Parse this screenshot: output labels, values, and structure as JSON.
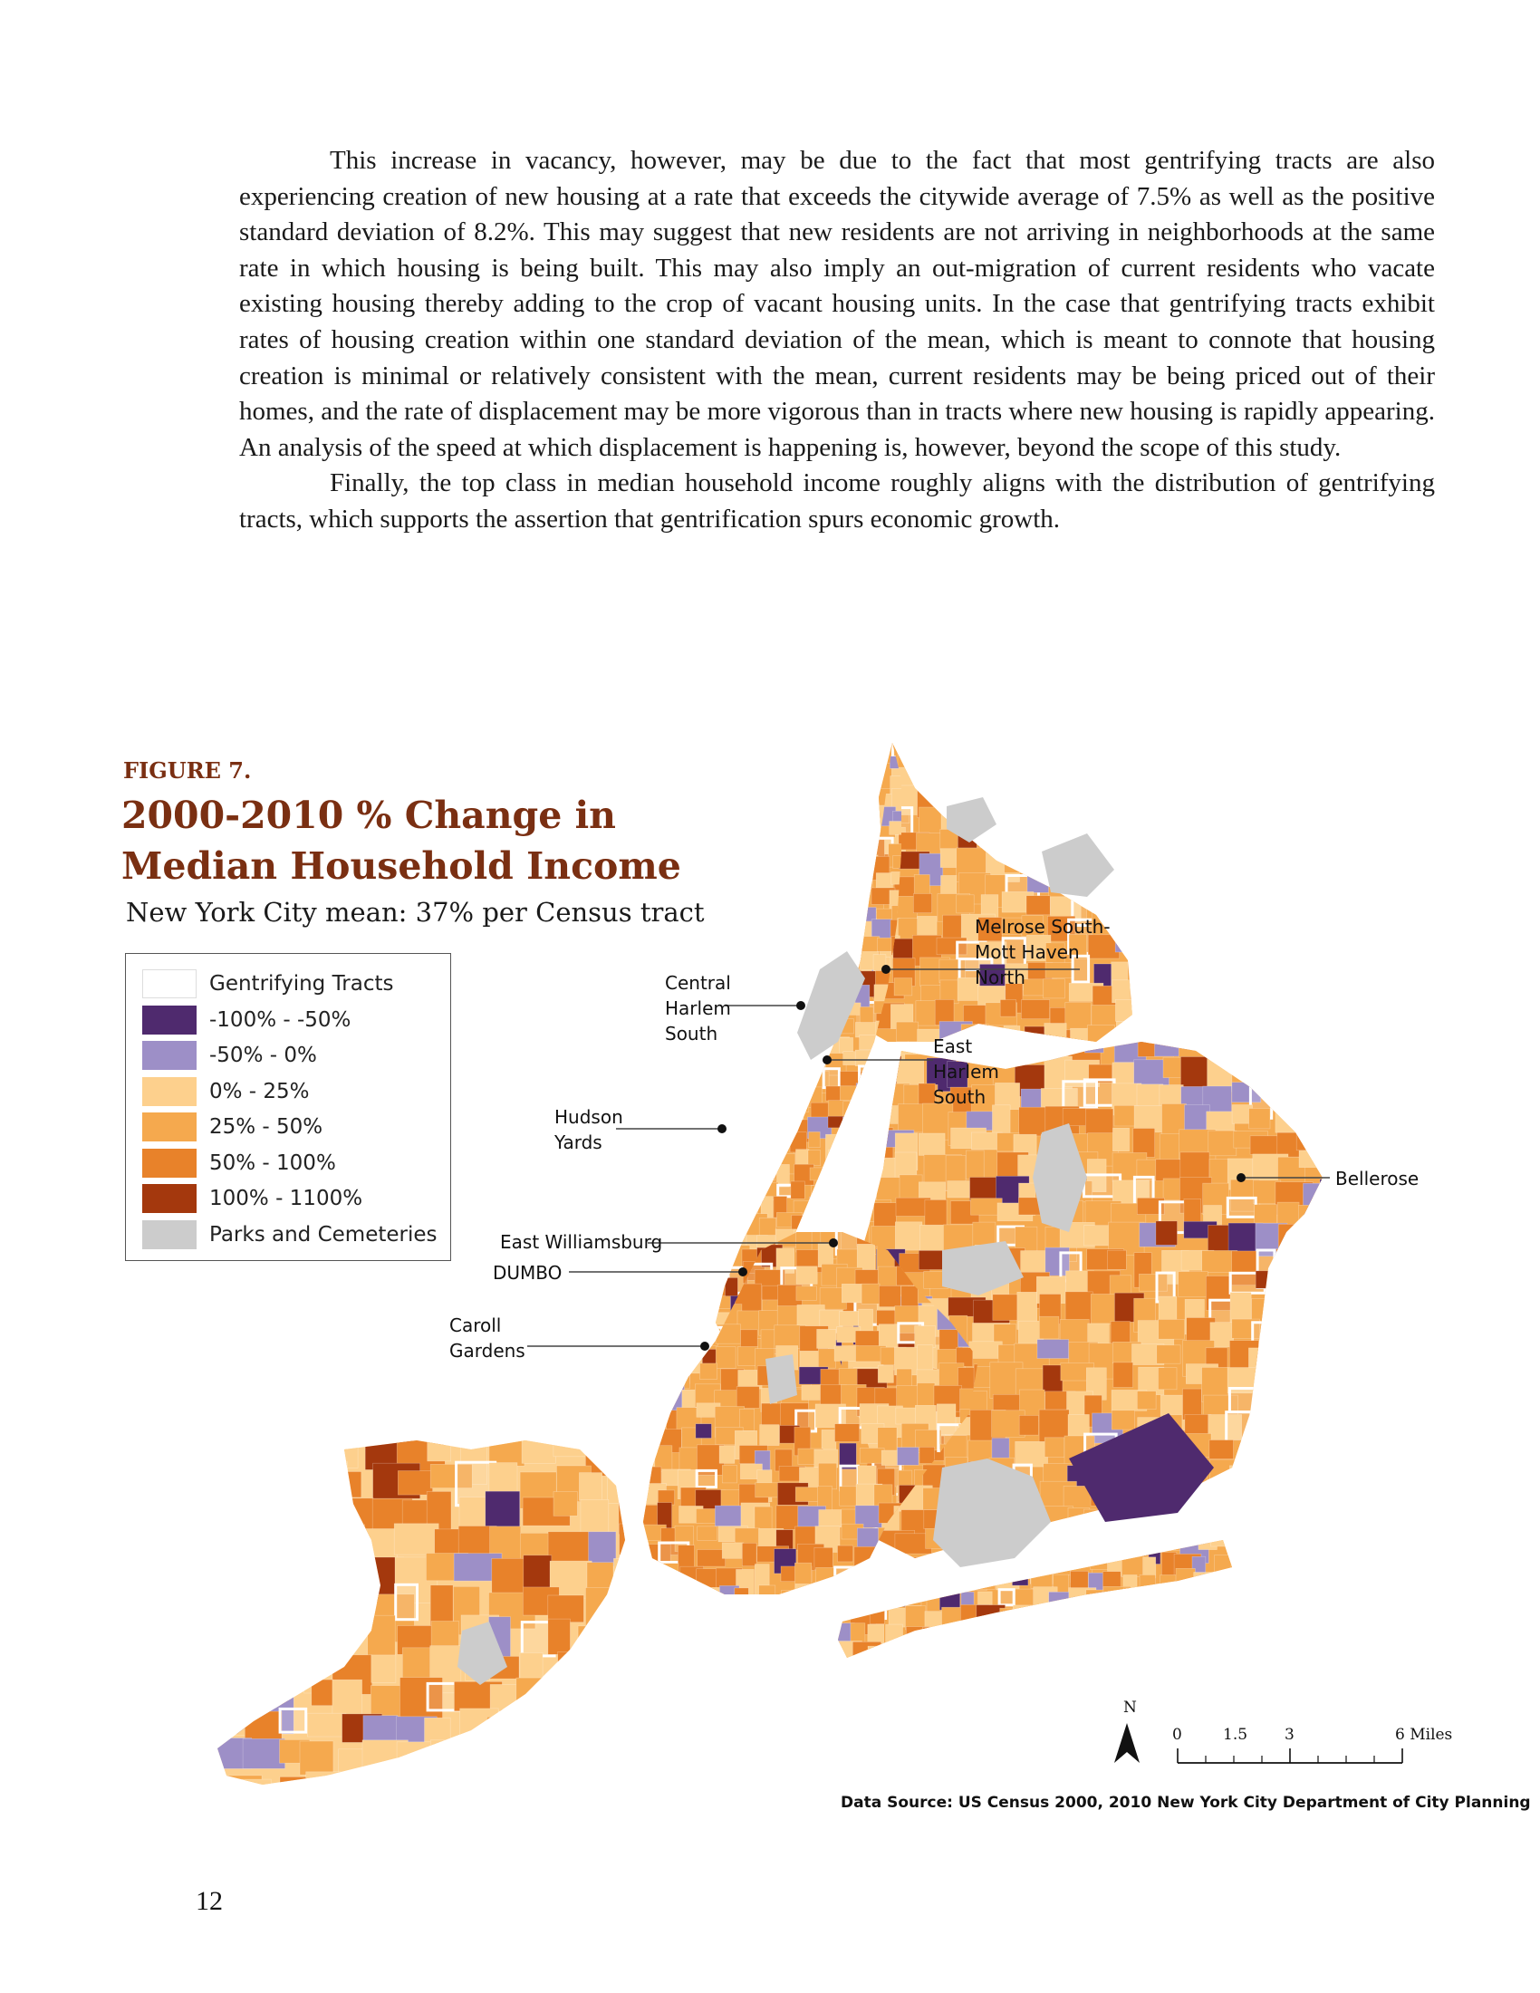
{
  "body": {
    "paragraphs": [
      "This increase in vacancy, however, may be due to the fact that most gentrifying tracts are also experiencing creation of new housing at a rate that exceeds the citywide average of 7.5% as well as the positive standard deviation of 8.2%. This may suggest that new residents are not arriving in neighborhoods at the same rate in which housing is being built. This may also imply an out-migration of current residents who vacate existing housing thereby adding to the crop of vacant housing units. In the case that gentrifying tracts exhibit rates of housing creation within one standard deviation of the mean, which is meant to connote that housing creation is minimal or relatively consistent with the mean, current residents may be being priced out of their homes, and the rate of displacement may be more vigorous than in tracts where new housing is rapidly appearing. An analysis of the speed at which displacement is happening is, however, beyond the scope of this study.",
      "Finally, the top class in median household income roughly aligns with the distribution of gentrifying tracts, which supports the assertion that gentrification spurs economic growth."
    ]
  },
  "figure": {
    "label": "FIGURE 7.",
    "title": "2000-2010 % Change in Median Household Income",
    "subtitle": "New York City mean: 37% per Census tract"
  },
  "legend": [
    {
      "label": "Gentrifying Tracts",
      "color": "#ffffff"
    },
    {
      "label": "-100% - -50%",
      "color": "#4f2a6e"
    },
    {
      "label": "-50% - 0%",
      "color": "#9d8fc7"
    },
    {
      "label": "0% - 25%",
      "color": "#fdd08d"
    },
    {
      "label": "25% - 50%",
      "color": "#f5a94e"
    },
    {
      "label": "50% - 100%",
      "color": "#e8822a"
    },
    {
      "label": "100% - 1100%",
      "color": "#a4380d"
    },
    {
      "label": "Parks and Cemeteries",
      "color": "#cccccc"
    }
  ],
  "map": {
    "labels": {
      "melrose": [
        "Melrose South-",
        "Mott Haven",
        "North"
      ],
      "central_harlem": [
        "Central",
        "Harlem",
        "South"
      ],
      "east_harlem": [
        "East",
        "Harlem",
        "South"
      ],
      "hudson_yards": [
        "Hudson",
        "Yards"
      ],
      "east_williamsburg": [
        "East Williamsburg"
      ],
      "dumbo": [
        "DUMBO"
      ],
      "carroll": [
        "Caroll",
        "Gardens"
      ],
      "bellerose": [
        "Bellerose"
      ]
    },
    "north_arrow": "N",
    "scale_ticks": [
      "0",
      "1.5",
      "3",
      "6 Miles"
    ]
  },
  "source": "Data Source: US Census 2000, 2010 New York City Department of City Planning",
  "page_number": "12"
}
